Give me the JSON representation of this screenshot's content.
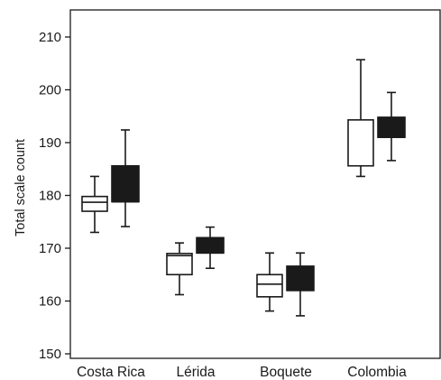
{
  "chart_data": {
    "type": "boxplot",
    "title": "",
    "xlabel": "",
    "ylabel": "Total scale count",
    "ylim": [
      150,
      215
    ],
    "yticks": [
      150,
      160,
      170,
      180,
      190,
      200,
      210
    ],
    "grid": false,
    "categories": [
      "Costa Rica",
      "Lérida",
      "Boquete",
      "Colombia"
    ],
    "series": [
      {
        "fill": "#ffffff",
        "boxes": [
          {
            "min": 173.0,
            "q1": 177.0,
            "median": 178.7,
            "q3": 179.8,
            "max": 183.6
          },
          {
            "min": 161.2,
            "q1": 165.0,
            "median": 168.6,
            "q3": 169.0,
            "max": 171.0
          },
          {
            "min": 158.1,
            "q1": 160.8,
            "median": 163.2,
            "q3": 165.0,
            "max": 169.1
          },
          {
            "min": 183.6,
            "q1": 185.6,
            "median": 185.6,
            "q3": 194.3,
            "max": 205.7
          }
        ]
      },
      {
        "fill": "#1a1a1a",
        "boxes": [
          {
            "min": 174.1,
            "q1": 178.8,
            "median": 178.8,
            "q3": 185.6,
            "max": 192.4
          },
          {
            "min": 166.2,
            "q1": 169.1,
            "median": 169.1,
            "q3": 172.0,
            "max": 174.0
          },
          {
            "min": 157.2,
            "q1": 162.0,
            "median": 162.0,
            "q3": 166.6,
            "max": 169.1
          },
          {
            "min": 186.6,
            "q1": 191.0,
            "median": 191.0,
            "q3": 194.8,
            "max": 199.5
          }
        ]
      }
    ]
  },
  "colors": {
    "axis": "#1a1a1a",
    "dark_box": "#1a1a1a",
    "light_box": "#ffffff"
  }
}
